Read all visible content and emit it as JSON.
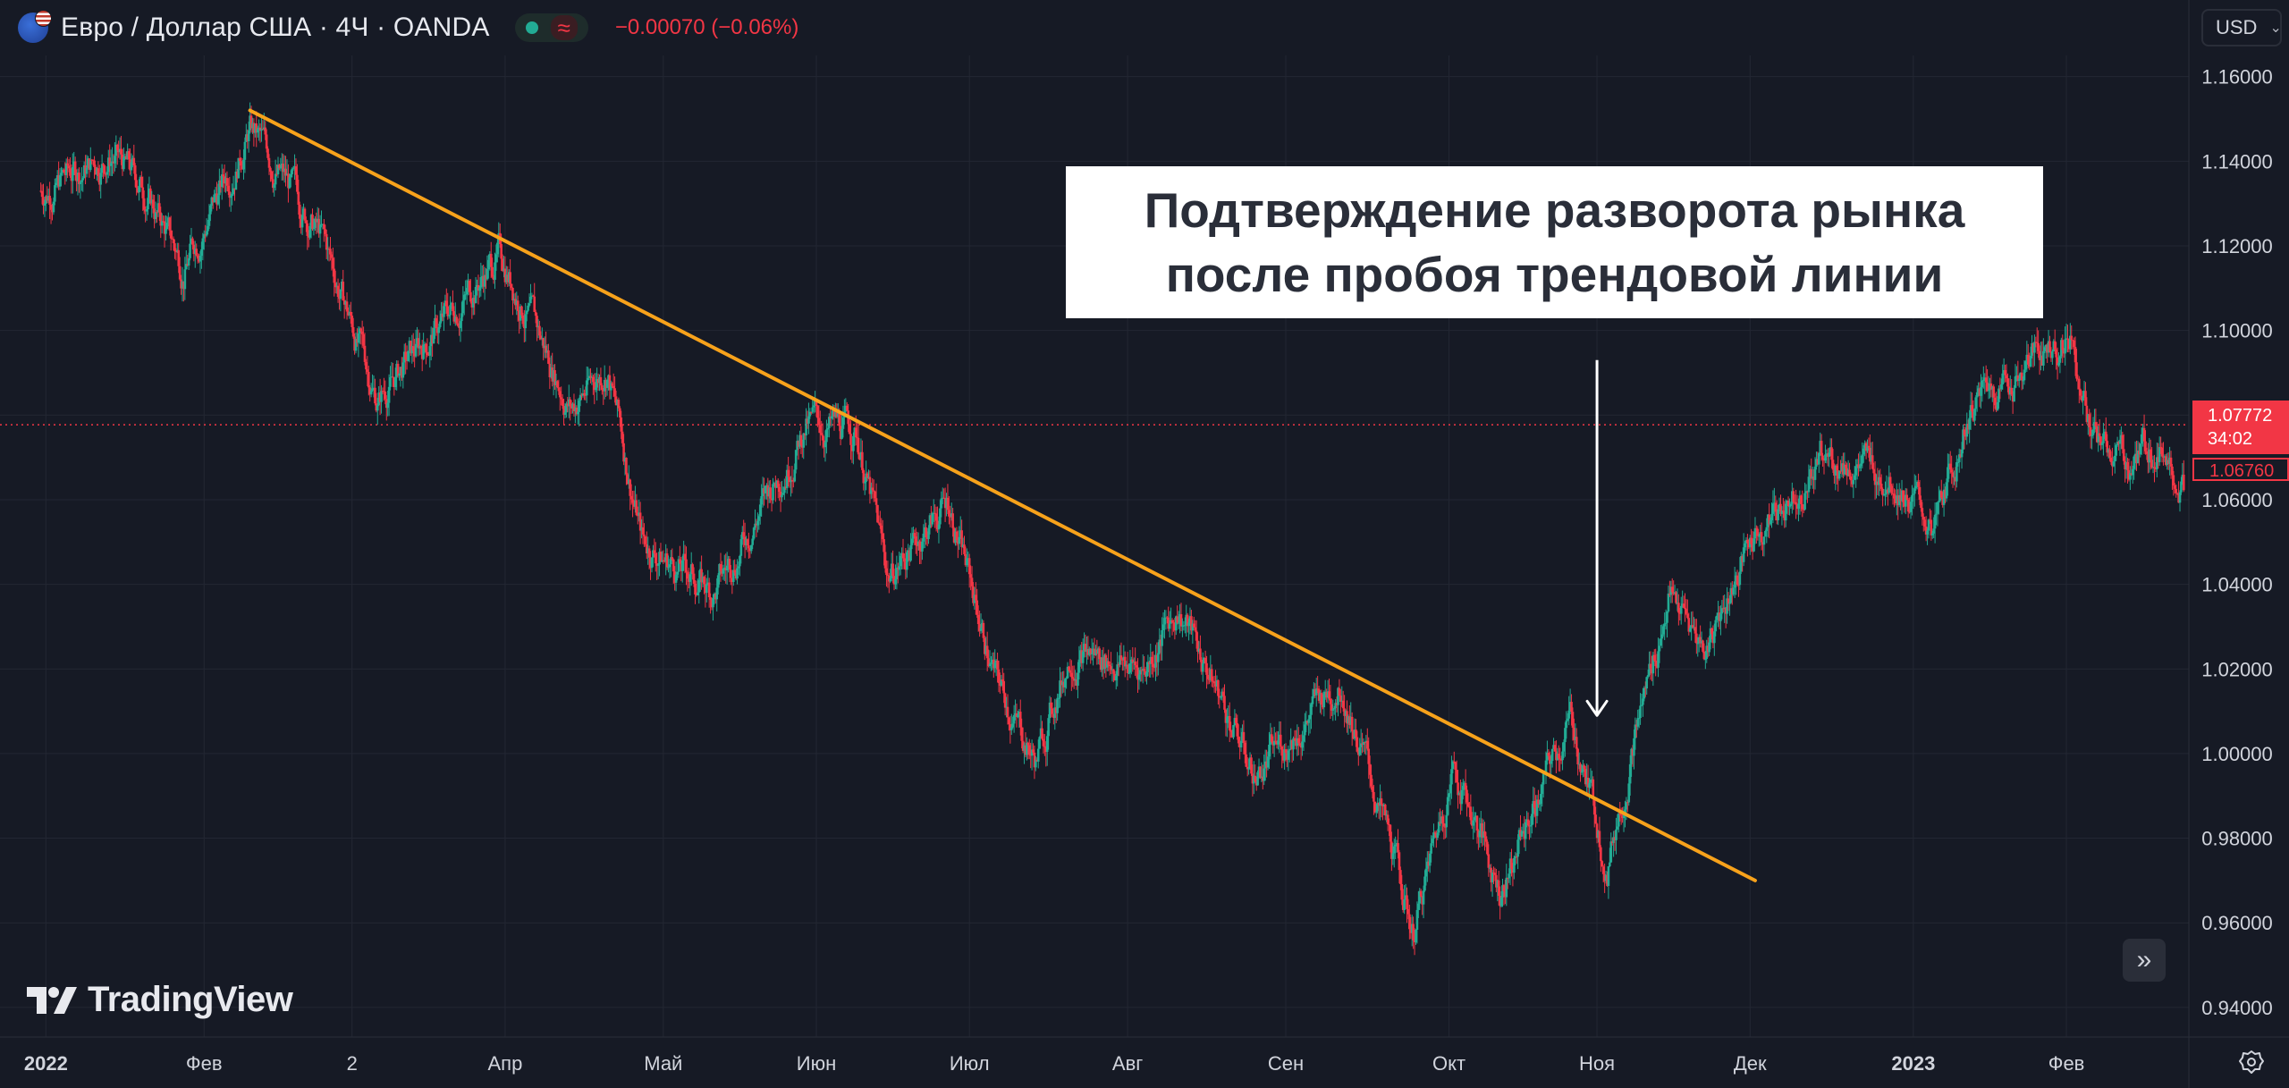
{
  "header": {
    "title": "Евро / Доллар США · 4Ч · OANDA",
    "change": "−0.00070 (−0.06%)",
    "status_icon": "market-open-dot",
    "wave_icon": "≈"
  },
  "currency_button": {
    "label": "USD"
  },
  "annotation": {
    "line1": "Подтверждение разворота рынка",
    "line2": "после пробоя трендовой линии"
  },
  "logo": {
    "text": "TradingView"
  },
  "price_labels": {
    "last_price": "1.07772",
    "countdown": "34:02",
    "prev_close": "1.06760"
  },
  "colors": {
    "background": "#161a25",
    "up": "#22ab94",
    "down": "#f23645",
    "trendline": "#f7a21b",
    "grid": "#232733",
    "axis_text": "#d1d4dc"
  },
  "chart_data": {
    "type": "candlestick",
    "symbol": "EUR/USD",
    "interval": "4H",
    "y_axis": {
      "ticks": [
        "1.16000",
        "1.14000",
        "1.12000",
        "1.10000",
        "1.08000",
        "1.06000",
        "1.04000",
        "1.02000",
        "1.00000",
        "0.98000",
        "0.96000",
        "0.94000"
      ],
      "range": [
        0.933,
        1.165
      ]
    },
    "x_axis": {
      "ticks": [
        {
          "label": "2022",
          "bold": true
        },
        {
          "label": "Фев",
          "bold": false
        },
        {
          "label": "2",
          "bold": false
        },
        {
          "label": "Апр",
          "bold": false
        },
        {
          "label": "Май",
          "bold": false
        },
        {
          "label": "Июн",
          "bold": false
        },
        {
          "label": "Июл",
          "bold": false
        },
        {
          "label": "Авг",
          "bold": false
        },
        {
          "label": "Сен",
          "bold": false
        },
        {
          "label": "Окт",
          "bold": false
        },
        {
          "label": "Ноя",
          "bold": false
        },
        {
          "label": "Дек",
          "bold": false
        },
        {
          "label": "2023",
          "bold": true
        },
        {
          "label": "Фев",
          "bold": false
        }
      ]
    },
    "price_path": [
      {
        "date": "2021-12-31",
        "close": 1.133
      },
      {
        "date": "2022-01-14",
        "close": 1.142
      },
      {
        "date": "2022-01-21",
        "close": 1.132
      },
      {
        "date": "2022-01-28",
        "close": 1.115
      },
      {
        "date": "2022-02-10",
        "close": 1.148
      },
      {
        "date": "2022-02-24",
        "close": 1.122
      },
      {
        "date": "2022-03-07",
        "close": 1.084
      },
      {
        "date": "2022-03-31",
        "close": 1.118
      },
      {
        "date": "2022-04-14",
        "close": 1.082
      },
      {
        "date": "2022-04-21",
        "close": 1.092
      },
      {
        "date": "2022-04-28",
        "close": 1.05
      },
      {
        "date": "2022-05-12",
        "close": 1.038
      },
      {
        "date": "2022-05-30",
        "close": 1.078
      },
      {
        "date": "2022-06-09",
        "close": 1.076
      },
      {
        "date": "2022-06-15",
        "close": 1.042
      },
      {
        "date": "2022-06-27",
        "close": 1.06
      },
      {
        "date": "2022-07-06",
        "close": 1.018
      },
      {
        "date": "2022-07-14",
        "close": 0.998
      },
      {
        "date": "2022-07-21",
        "close": 1.025
      },
      {
        "date": "2022-08-04",
        "close": 1.02
      },
      {
        "date": "2022-08-11",
        "close": 1.035
      },
      {
        "date": "2022-08-26",
        "close": 0.995
      },
      {
        "date": "2022-09-12",
        "close": 1.018
      },
      {
        "date": "2022-09-26",
        "close": 0.958
      },
      {
        "date": "2022-10-04",
        "close": 0.998
      },
      {
        "date": "2022-10-13",
        "close": 0.968
      },
      {
        "date": "2022-10-27",
        "close": 1.008
      },
      {
        "date": "2022-11-03",
        "close": 0.975
      },
      {
        "date": "2022-11-15",
        "close": 1.038
      },
      {
        "date": "2022-11-22",
        "close": 1.025
      },
      {
        "date": "2022-12-01",
        "close": 1.05
      },
      {
        "date": "2022-12-15",
        "close": 1.07
      },
      {
        "date": "2022-12-29",
        "close": 1.066
      },
      {
        "date": "2023-01-06",
        "close": 1.052
      },
      {
        "date": "2023-01-13",
        "close": 1.082
      },
      {
        "date": "2023-02-02",
        "close": 1.1
      },
      {
        "date": "2023-02-06",
        "close": 1.075
      },
      {
        "date": "2023-02-13",
        "close": 1.068
      },
      {
        "date": "2023-02-20",
        "close": 1.075
      },
      {
        "date": "2023-02-24",
        "close": 1.063
      }
    ],
    "trendline": {
      "start": {
        "date": "2022-02-10",
        "price": 1.152
      },
      "end": {
        "date": "2022-12-02",
        "price": 0.97
      }
    },
    "arrow": {
      "date": "2022-11-01",
      "price_from": 1.093,
      "price_to": 1.009
    },
    "last_price": 1.07772,
    "prev_close": 1.0676
  }
}
